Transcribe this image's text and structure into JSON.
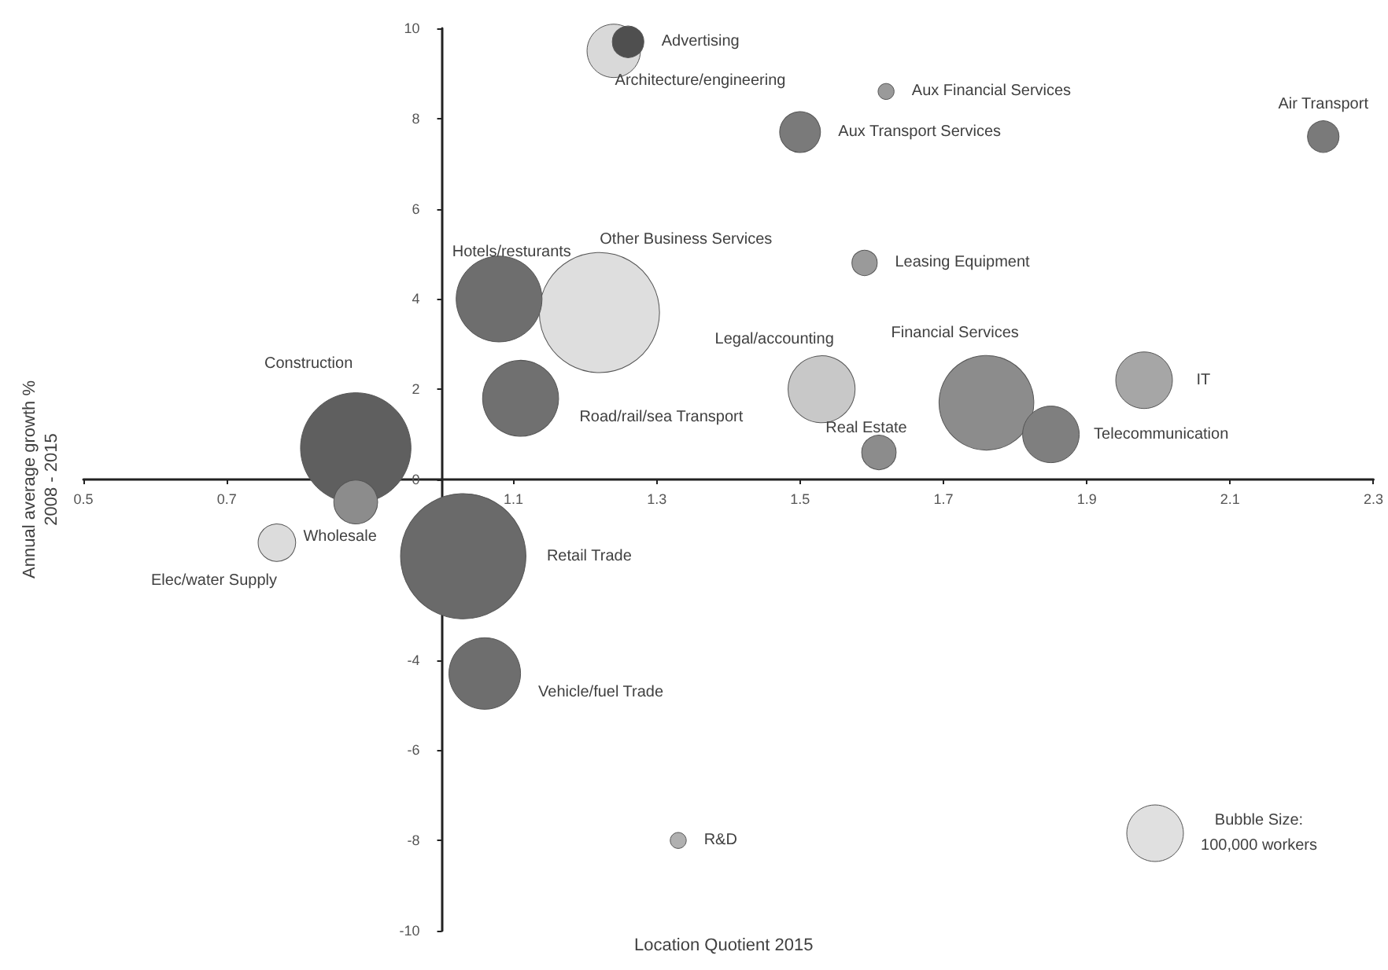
{
  "chart_data": {
    "type": "bubble",
    "xlabel": "Location Quotient 2015",
    "ylabel": "Annual average growth %\n2008 - 2015",
    "xlim": [
      0.5,
      2.3
    ],
    "xticks": [
      0.5,
      0.7,
      1.1,
      1.3,
      1.5,
      1.7,
      1.9,
      2.1,
      2.3
    ],
    "ylim": [
      -10,
      10
    ],
    "yticks": [
      -10,
      -8,
      -6,
      -4,
      0,
      2,
      4,
      6,
      8,
      10
    ],
    "grid": false,
    "legend": false,
    "size_legend": [
      {
        "value": 100000,
        "label": "Bubble Size:\n100,000 workers"
      }
    ],
    "series": [
      {
        "name": "Advertising",
        "x": [
          1.26
        ],
        "values": [
          9.7
        ],
        "sizes": [
          31000
        ],
        "color": "#4f4f4f"
      },
      {
        "name": "Architecture/engineering",
        "x": [
          1.24
        ],
        "values": [
          9.5
        ],
        "sizes": [
          89000
        ],
        "color": "#d9d9d9"
      },
      {
        "name": "Aux Financial Services",
        "x": [
          1.62
        ],
        "values": [
          8.6
        ],
        "sizes": [
          8000
        ],
        "color": "#9a9a9a"
      },
      {
        "name": "Aux Transport Services",
        "x": [
          1.5
        ],
        "values": [
          7.7
        ],
        "sizes": [
          52000
        ],
        "color": "#7a7a7a"
      },
      {
        "name": "Air Transport",
        "x": [
          2.23
        ],
        "values": [
          7.6
        ],
        "sizes": [
          31000
        ],
        "color": "#7a7a7a"
      },
      {
        "name": "Hotels/resturants",
        "x": [
          1.08
        ],
        "values": [
          4.0
        ],
        "sizes": [
          230000
        ],
        "color": "#6e6e6e"
      },
      {
        "name": "Other Business Services",
        "x": [
          1.22
        ],
        "values": [
          3.7
        ],
        "sizes": [
          450000
        ],
        "color": "#dedede"
      },
      {
        "name": "Leasing Equipment",
        "x": [
          1.59
        ],
        "values": [
          4.8
        ],
        "sizes": [
          20000
        ],
        "color": "#9a9a9a"
      },
      {
        "name": "Legal/accounting",
        "x": [
          1.53
        ],
        "values": [
          2.0
        ],
        "sizes": [
          140000
        ],
        "color": "#c8c8c8"
      },
      {
        "name": "Financial Services",
        "x": [
          1.76
        ],
        "values": [
          1.7
        ],
        "sizes": [
          280000
        ],
        "color": "#8c8c8c"
      },
      {
        "name": "Telecommunication",
        "x": [
          1.85
        ],
        "values": [
          1.0
        ],
        "sizes": [
          100000
        ],
        "color": "#7f7f7f"
      },
      {
        "name": "IT",
        "x": [
          1.98
        ],
        "values": [
          2.2
        ],
        "sizes": [
          100000
        ],
        "color": "#a6a6a6"
      },
      {
        "name": "Real Estate",
        "x": [
          1.61
        ],
        "values": [
          0.6
        ],
        "sizes": [
          37000
        ],
        "color": "#8c8c8c"
      },
      {
        "name": "Road/rail/sea Transport",
        "x": [
          1.11
        ],
        "values": [
          1.8
        ],
        "sizes": [
          180000
        ],
        "color": "#707070"
      },
      {
        "name": "Construction",
        "x": [
          0.88
        ],
        "values": [
          0.7
        ],
        "sizes": [
          380000
        ],
        "color": "#5f5f5f"
      },
      {
        "name": "Wholesale",
        "x": [
          0.88
        ],
        "values": [
          -0.5
        ],
        "sizes": [
          60000
        ],
        "color": "#8c8c8c"
      },
      {
        "name": "Elec/water Supply",
        "x": [
          0.77
        ],
        "values": [
          -1.4
        ],
        "sizes": [
          44000
        ],
        "color": "#dcdcdc"
      },
      {
        "name": "Retail Trade",
        "x": [
          1.03
        ],
        "values": [
          -1.7
        ],
        "sizes": [
          490000
        ],
        "color": "#6a6a6a"
      },
      {
        "name": "Vehicle/fuel Trade",
        "x": [
          1.06
        ],
        "values": [
          -4.3
        ],
        "sizes": [
          160000
        ],
        "color": "#6e6e6e"
      },
      {
        "name": "R&D",
        "x": [
          1.33
        ],
        "values": [
          -8.0
        ],
        "sizes": [
          8000
        ],
        "color": "#b0b0b0"
      }
    ]
  }
}
